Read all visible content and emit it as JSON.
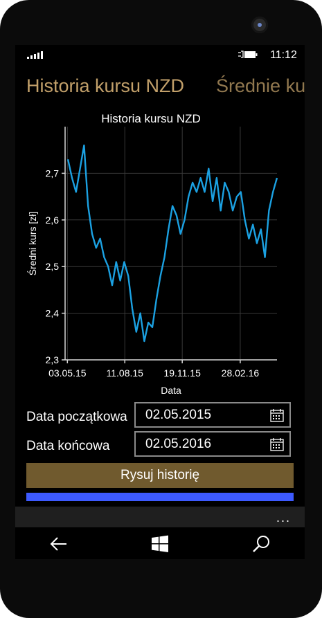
{
  "status": {
    "time": "11:12"
  },
  "pivot": {
    "active_title": "Historia kursu NZD",
    "next_title": "Średnie kurs"
  },
  "chart_data": {
    "type": "line",
    "title": "Historia kursu NZD",
    "xlabel": "Data",
    "ylabel": "Średni kurs [zł]",
    "ylim": [
      2.3,
      2.8
    ],
    "yticks": [
      2.3,
      2.4,
      2.5,
      2.6,
      2.7
    ],
    "ytick_labels": [
      "2,3",
      "2,4",
      "2,5",
      "2,6",
      "2,7"
    ],
    "xticks": [
      "2015-05-03",
      "2015-08-11",
      "2015-11-19",
      "2016-02-28"
    ],
    "xtick_labels": [
      "03.05.15",
      "11.08.15",
      "19.11.15",
      "28.02.16"
    ],
    "xlim": [
      "2015-04-29",
      "2016-05-02"
    ],
    "series": [
      {
        "color": "#1ba1e2",
        "x": [
          "2015-05-04",
          "2015-05-11",
          "2015-05-18",
          "2015-05-25",
          "2015-06-01",
          "2015-06-08",
          "2015-06-15",
          "2015-06-22",
          "2015-06-29",
          "2015-07-06",
          "2015-07-13",
          "2015-07-20",
          "2015-07-27",
          "2015-08-03",
          "2015-08-10",
          "2015-08-17",
          "2015-08-24",
          "2015-08-31",
          "2015-09-07",
          "2015-09-14",
          "2015-09-21",
          "2015-09-28",
          "2015-10-05",
          "2015-10-12",
          "2015-10-19",
          "2015-10-26",
          "2015-11-02",
          "2015-11-09",
          "2015-11-16",
          "2015-11-23",
          "2015-11-30",
          "2015-12-07",
          "2015-12-14",
          "2015-12-21",
          "2015-12-28",
          "2016-01-04",
          "2016-01-11",
          "2016-01-18",
          "2016-01-25",
          "2016-02-01",
          "2016-02-08",
          "2016-02-15",
          "2016-02-22",
          "2016-02-29",
          "2016-03-07",
          "2016-03-14",
          "2016-03-21",
          "2016-03-28",
          "2016-04-04",
          "2016-04-11",
          "2016-04-18",
          "2016-04-25",
          "2016-05-02"
        ],
        "y": [
          2.73,
          2.69,
          2.66,
          2.71,
          2.76,
          2.63,
          2.57,
          2.54,
          2.56,
          2.52,
          2.5,
          2.46,
          2.51,
          2.47,
          2.51,
          2.48,
          2.41,
          2.36,
          2.4,
          2.34,
          2.38,
          2.37,
          2.43,
          2.48,
          2.52,
          2.58,
          2.63,
          2.61,
          2.57,
          2.6,
          2.65,
          2.68,
          2.66,
          2.69,
          2.66,
          2.71,
          2.64,
          2.69,
          2.62,
          2.68,
          2.66,
          2.62,
          2.65,
          2.66,
          2.6,
          2.56,
          2.59,
          2.55,
          2.58,
          2.52,
          2.62,
          2.66,
          2.69
        ]
      }
    ]
  },
  "form": {
    "start_label": "Data początkowa",
    "start_value": "02.05.2015",
    "end_label": "Data końcowa",
    "end_value": "02.05.2016",
    "draw_button": "Rysuj historię"
  },
  "progress": {
    "fraction": 1.0,
    "color": "#3d5afe"
  },
  "appbar": {
    "more": "..."
  },
  "icons": {
    "back": "back-arrow-icon",
    "home": "windows-icon",
    "search": "search-icon",
    "calendar": "calendar-icon"
  }
}
